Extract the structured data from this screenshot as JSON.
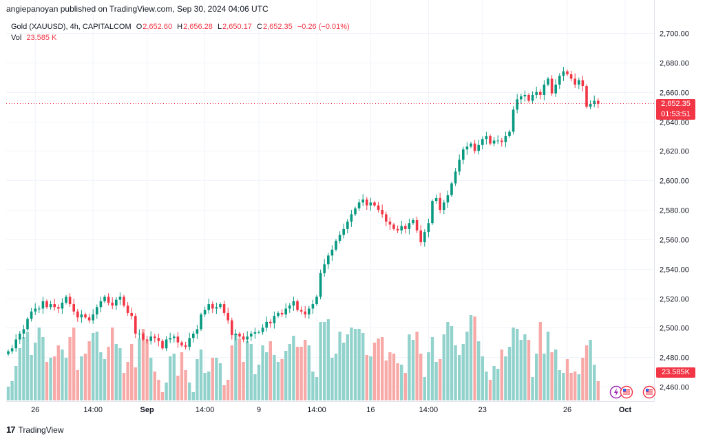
{
  "header": {
    "published": "angiepanoyan published on TradingView.com, Sep 30, 2024 04:06 UTC"
  },
  "legend": {
    "symbol": "Gold (XAUUSD), 4h, CAPITALCOM",
    "open_label": "O",
    "open": "2,652.60",
    "high_label": "H",
    "high": "2,656.28",
    "low_label": "L",
    "low": "2,650.17",
    "close_label": "C",
    "close": "2,652.35",
    "change": "−0.26 (−0.01%)",
    "vol_label": "Vol",
    "vol": "23.585 K"
  },
  "badges": {
    "price": "2,652.35",
    "countdown": "01:53:51",
    "volume": "23.585K"
  },
  "footer": {
    "logo_text": "TradingView"
  },
  "colors": {
    "up": "#089981",
    "down": "#f23645",
    "vol_up": "#92d2cc",
    "vol_down": "#f7a9a7",
    "grid": "#f0f3fa"
  },
  "chart_data": {
    "type": "candlestick",
    "title": "Gold (XAUUSD), 4h, CAPITALCOM",
    "y_axis": {
      "range": [
        2450,
        2710
      ],
      "ticks": [
        "2,460.00",
        "2,480.00",
        "2,500.00",
        "2,520.00",
        "2,540.00",
        "2,560.00",
        "2,580.00",
        "2,600.00",
        "2,620.00",
        "2,640.00",
        "2,660.00",
        "2,680.00",
        "2,700.00"
      ],
      "tick_values": [
        2460,
        2480,
        2500,
        2520,
        2540,
        2560,
        2580,
        2600,
        2620,
        2640,
        2660,
        2680,
        2700
      ]
    },
    "x_axis": {
      "labels": [
        "26",
        "14:00",
        "Sep",
        "14:00",
        "9",
        "14:00",
        "16",
        "14:00",
        "23",
        "26",
        "Oct"
      ],
      "label_index": [
        7,
        22,
        36,
        51,
        65,
        80,
        94,
        109,
        123,
        145,
        160
      ]
    },
    "last_price": 2652.35,
    "volume_max": 60,
    "close": [
      2484,
      2486,
      2492,
      2496,
      2499,
      2506,
      2511,
      2513,
      2513,
      2518,
      2514,
      2516,
      2514,
      2513,
      2517,
      2521,
      2516,
      2511,
      2507,
      2509,
      2507,
      2505,
      2509,
      2514,
      2518,
      2521,
      2517,
      2515,
      2519,
      2521,
      2515,
      2510,
      2508,
      2496,
      2496,
      2492,
      2491,
      2494,
      2493,
      2491,
      2486,
      2492,
      2493,
      2494,
      2490,
      2488,
      2487,
      2493,
      2496,
      2499,
      2509,
      2512,
      2516,
      2513,
      2514,
      2516,
      2510,
      2505,
      2495,
      2496,
      2494,
      2492,
      2494,
      2496,
      2497,
      2497,
      2500,
      2504,
      2503,
      2508,
      2510,
      2509,
      2513,
      2515,
      2518,
      2512,
      2511,
      2509,
      2513,
      2516,
      2521,
      2537,
      2543,
      2549,
      2553,
      2559,
      2563,
      2567,
      2572,
      2577,
      2581,
      2585,
      2587,
      2583,
      2585,
      2583,
      2580,
      2577,
      2572,
      2570,
      2567,
      2566,
      2569,
      2567,
      2571,
      2573,
      2566,
      2558,
      2565,
      2571,
      2586,
      2588,
      2580,
      2585,
      2590,
      2598,
      2606,
      2614,
      2621,
      2623,
      2625,
      2620,
      2624,
      2628,
      2630,
      2625,
      2627,
      2627,
      2626,
      2630,
      2633,
      2648,
      2655,
      2657,
      2658,
      2654,
      2658,
      2660,
      2658,
      2665,
      2669,
      2659,
      2665,
      2671,
      2674,
      2672,
      2669,
      2665,
      2668,
      2664,
      2650,
      2652,
      2654,
      2652
    ],
    "volume": [
      10,
      14,
      25,
      38,
      46,
      50,
      33,
      42,
      53,
      46,
      28,
      31,
      32,
      40,
      37,
      31,
      46,
      53,
      22,
      32,
      34,
      43,
      49,
      50,
      35,
      30,
      39,
      53,
      41,
      38,
      20,
      28,
      41,
      24,
      45,
      52,
      43,
      31,
      21,
      15,
      6,
      13,
      32,
      34,
      18,
      35,
      22,
      13,
      6,
      30,
      37,
      20,
      21,
      31,
      31,
      27,
      11,
      15,
      40,
      48,
      45,
      28,
      43,
      41,
      19,
      26,
      40,
      35,
      43,
      33,
      28,
      30,
      36,
      41,
      47,
      39,
      39,
      44,
      40,
      21,
      17,
      57,
      57,
      59,
      31,
      34,
      50,
      42,
      48,
      53,
      52,
      52,
      49,
      33,
      32,
      42,
      45,
      46,
      29,
      35,
      34,
      27,
      26,
      20,
      48,
      44,
      50,
      34,
      17,
      35,
      46,
      28,
      30,
      48,
      57,
      54,
      40,
      33,
      41,
      50,
      62,
      61,
      43,
      32,
      21,
      15,
      25,
      23,
      37,
      32,
      39,
      53,
      52,
      44,
      48,
      44,
      17,
      34,
      57,
      34,
      50,
      35,
      37,
      22,
      20,
      30,
      20,
      21,
      19,
      31,
      40,
      44,
      26,
      14
    ]
  }
}
